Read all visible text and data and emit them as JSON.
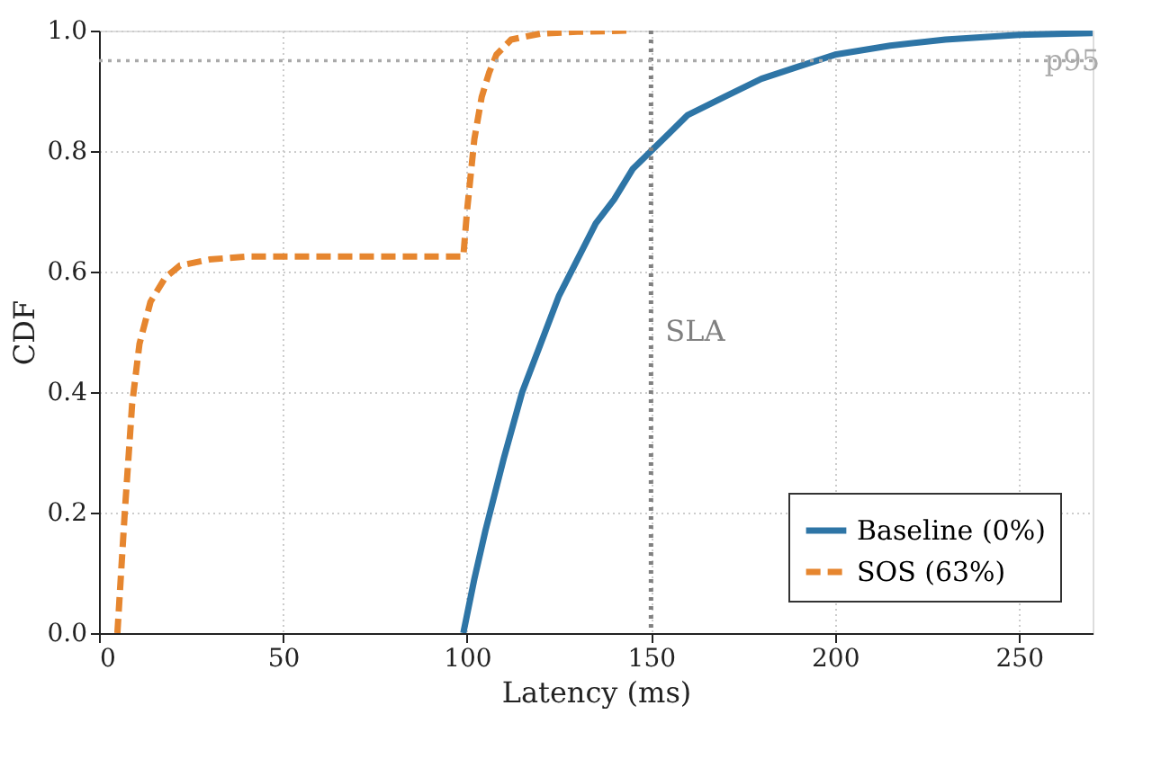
{
  "chart_data": {
    "type": "line",
    "xlabel": "Latency (ms)",
    "ylabel": "CDF",
    "xlim": [
      0,
      270
    ],
    "xticks": [
      0,
      50,
      100,
      150,
      200,
      250
    ],
    "ylim": [
      0,
      1.0
    ],
    "yticks": [
      {
        "value": 0,
        "label": "0.0"
      },
      0.2,
      0.4,
      0.6,
      0.8,
      {
        "value": 1,
        "label": "1.0"
      }
    ],
    "grid": true,
    "legend": "bottom right",
    "series": [
      {
        "name": "Baseline (0%)",
        "color": "#2e75a6",
        "line_style": "solid",
        "x": [
          99,
          102,
          105,
          110,
          115,
          120,
          125,
          130,
          135,
          140,
          145,
          150,
          155,
          160,
          170,
          180,
          190,
          200,
          215,
          230,
          250,
          270
        ],
        "values": [
          0,
          0.09,
          0.17,
          0.29,
          0.4,
          0.48,
          0.56,
          0.62,
          0.68,
          0.72,
          0.77,
          0.8,
          0.83,
          0.86,
          0.89,
          0.92,
          0.94,
          0.96,
          0.975,
          0.985,
          0.993,
          0.996
        ]
      },
      {
        "name": "SOS (63%)",
        "color": "#e6862f",
        "line_style": "dashed",
        "x": [
          5,
          6,
          7,
          9,
          11,
          14,
          18,
          22,
          30,
          40,
          98,
          99,
          100,
          101,
          102,
          104,
          106,
          108,
          112,
          120,
          130,
          144
        ],
        "values": [
          0,
          0.1,
          0.2,
          0.38,
          0.48,
          0.55,
          0.59,
          0.61,
          0.62,
          0.625,
          0.625,
          0.625,
          0.7,
          0.76,
          0.82,
          0.89,
          0.93,
          0.96,
          0.985,
          0.995,
          0.998,
          1.0
        ]
      }
    ],
    "ref_lines": [
      {
        "axis": "x",
        "value": 150,
        "label": "SLA",
        "color": "#808080",
        "line_style": "dotted"
      },
      {
        "axis": "y",
        "value": 0.95,
        "label": "p95",
        "color": "#aaaaaa",
        "line_style": "dotted"
      }
    ]
  }
}
